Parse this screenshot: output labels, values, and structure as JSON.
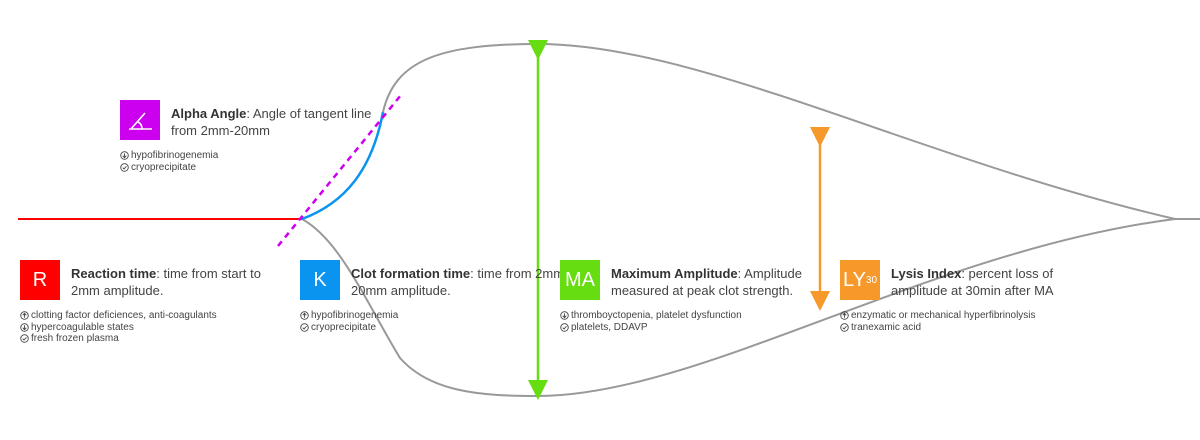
{
  "colors": {
    "reaction": "#ff0000",
    "clot_formation": "#0a94f0",
    "alpha": "#cc00ee",
    "max_amplitude": "#66dd11",
    "lysis": "#f7992a",
    "trace": "#999999"
  },
  "params": [
    {
      "id": "alpha",
      "badge": "",
      "badge_icon": "angle-icon",
      "title": "Alpha Angle",
      "text": ": Angle of tangent line from 2mm-20mm",
      "notes": [
        {
          "icon": "arrow-down-circle-icon",
          "text": "hypofibrinogenemia"
        },
        {
          "icon": "check-circle-icon",
          "text": "cryoprecipitate"
        }
      ]
    },
    {
      "id": "reaction",
      "badge": "R",
      "title": "Reaction time",
      "text": ": time from start to 2mm amplitude.",
      "notes": [
        {
          "icon": "arrow-up-circle-icon",
          "text": "clotting factor deficiences, anti-coagulants"
        },
        {
          "icon": "arrow-down-circle-icon",
          "text": "hypercoagulable states"
        },
        {
          "icon": "check-circle-icon",
          "text": "fresh frozen plasma"
        }
      ]
    },
    {
      "id": "clot_formation",
      "badge": "K",
      "title": "Clot formation time",
      "text": ": time from 2mm-20mm amplitude.",
      "notes": [
        {
          "icon": "arrow-up-circle-icon",
          "text": "hypofibrinogenemia"
        },
        {
          "icon": "check-circle-icon",
          "text": "cryoprecipitate"
        }
      ]
    },
    {
      "id": "max_amplitude",
      "badge": "MA",
      "title": "Maximum Amplitude",
      "text": ": Amplitude measured at peak clot strength.",
      "notes": [
        {
          "icon": "arrow-down-circle-icon",
          "text": "thromboyctopenia, platelet dysfunction"
        },
        {
          "icon": "check-circle-icon",
          "text": "platelets, DDAVP"
        }
      ]
    },
    {
      "id": "lysis",
      "badge": "LY",
      "badge_sub": "30",
      "title": "Lysis Index",
      "text": ": percent loss of amplitude at 30min after MA",
      "notes": [
        {
          "icon": "arrow-up-circle-icon",
          "text": "enzymatic or mechanical hyperfibrinolysis"
        },
        {
          "icon": "check-circle-icon",
          "text": "tranexamic acid"
        }
      ]
    }
  ]
}
